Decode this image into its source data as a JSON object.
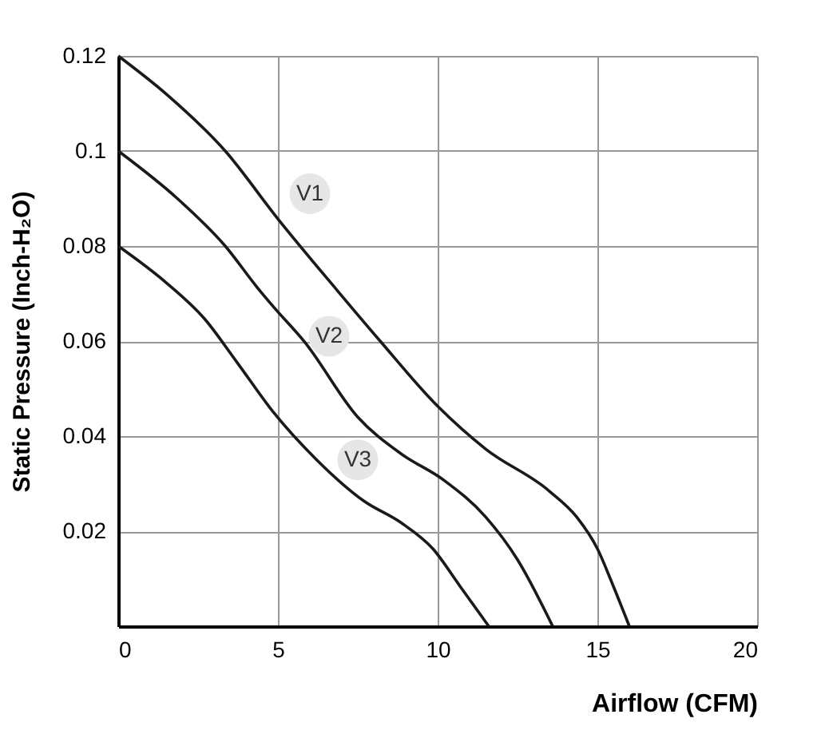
{
  "chart_data": {
    "type": "line",
    "xlabel": "Airflow (CFM)",
    "ylabel": "Static Pressure (Inch-H₂O)",
    "xlim": [
      0,
      20
    ],
    "ylim": [
      0,
      0.12
    ],
    "xticks": [
      0,
      5,
      10,
      15,
      20
    ],
    "yticks": [
      0.02,
      0.04,
      0.06,
      0.08,
      0.1,
      0.12
    ],
    "grid": true,
    "marker": "none",
    "line_style": "solid",
    "series": [
      {
        "color": "#1a1a1a",
        "x": [
          0,
          1.5,
          3.35,
          5,
          6.85,
          8.2,
          10,
          11.5,
          13.5,
          14.35,
          15,
          15.5,
          16
        ],
        "values": [
          0.12,
          0.112,
          0.1,
          0.0857,
          0.0707,
          0.06,
          0.0463,
          0.0373,
          0.0284,
          0.023,
          0.0163,
          0.0084,
          0
        ]
      },
      {
        "color": "#1a1a1a",
        "x": [
          0,
          1.85,
          3.35,
          4.35,
          4.85,
          5.85,
          7.5,
          8.85,
          10.2,
          11.5,
          12.5,
          13.6
        ],
        "values": [
          0.1,
          0.09,
          0.08,
          0.0713,
          0.0673,
          0.0597,
          0.044,
          0.0363,
          0.0307,
          0.023,
          0.014,
          0
        ]
      },
      {
        "color": "#1a1a1a",
        "x": [
          0,
          1.5,
          2.7,
          3.7,
          4.85,
          6.2,
          7.7,
          8.85,
          9.85,
          10.7,
          11.6
        ],
        "values": [
          0.08,
          0.0723,
          0.0647,
          0.0557,
          0.0451,
          0.0351,
          0.0263,
          0.0218,
          0.0163,
          0.0084,
          0
        ]
      }
    ],
    "annotations": [
      {
        "text": "V1",
        "x": 6,
        "y": 0.091
      },
      {
        "text": "V2",
        "x": 6.6,
        "y": 0.061
      },
      {
        "text": "V3",
        "x": 7.5,
        "y": 0.035
      }
    ]
  }
}
